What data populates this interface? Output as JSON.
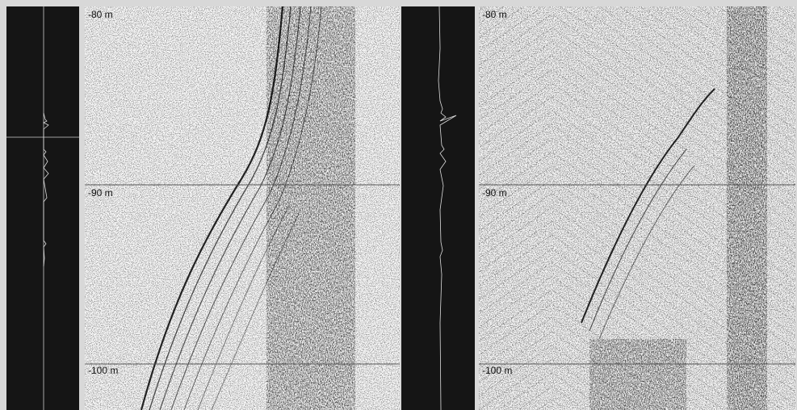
{
  "panels": [
    {
      "depth_labels": [
        "-80 m",
        "-90 m",
        "-100 m"
      ]
    },
    {
      "depth_labels": [
        "-80 m",
        "-90 m",
        "-100 m"
      ]
    }
  ]
}
